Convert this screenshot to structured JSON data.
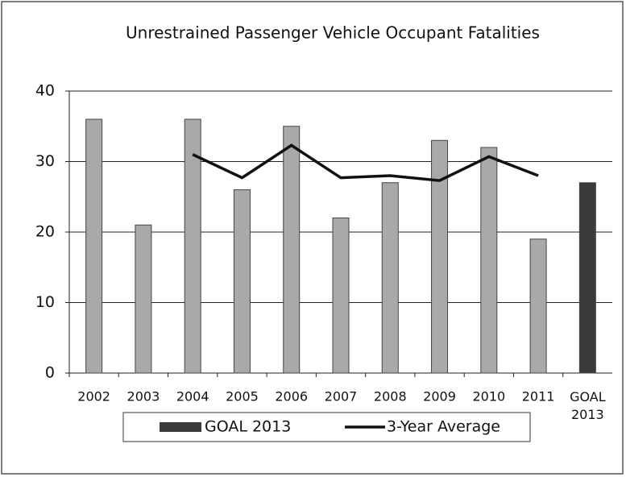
{
  "chart_data": {
    "type": "bar",
    "title": "Unrestrained Passenger Vehicle Occupant Fatalities",
    "categories": [
      "2002",
      "2003",
      "2004",
      "2005",
      "2006",
      "2007",
      "2008",
      "2009",
      "2010",
      "2011",
      "GOAL 2013"
    ],
    "series": [
      {
        "type": "bar",
        "color": "#a9a9a9",
        "values": [
          36,
          21,
          36,
          26,
          35,
          22,
          27,
          33,
          32,
          19,
          null
        ]
      },
      {
        "type": "bar",
        "name": "GOAL 2013",
        "color": "#3a3a3a",
        "values": [
          null,
          null,
          null,
          null,
          null,
          null,
          null,
          null,
          null,
          null,
          27
        ]
      },
      {
        "type": "line",
        "name": "3-Year Average",
        "color": "#111111",
        "values": [
          null,
          null,
          31,
          27.7,
          32.3,
          27.7,
          28,
          27.3,
          30.7,
          28,
          null
        ]
      }
    ],
    "ylim": [
      0,
      40
    ],
    "yticks": [
      0,
      10,
      20,
      30,
      40
    ],
    "grid": true,
    "legend": "bottom"
  }
}
